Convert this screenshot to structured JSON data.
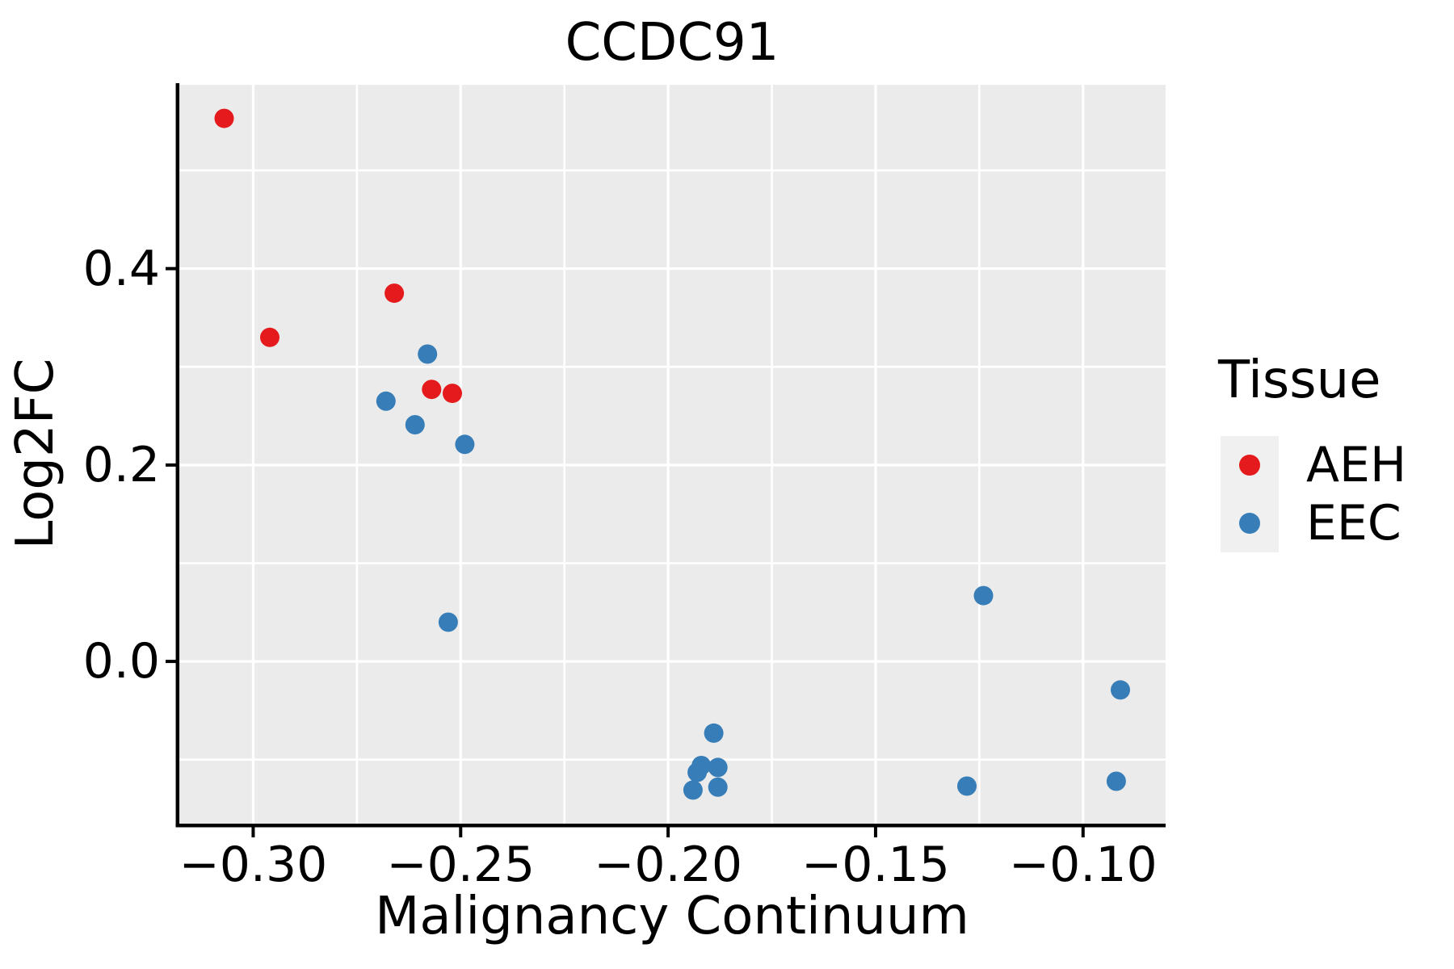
{
  "chart_data": {
    "type": "scatter",
    "title": "CCDC91",
    "xlabel": "Malignancy Continuum",
    "ylabel": "Log2FC",
    "xlim": [
      -0.3178,
      -0.0801
    ],
    "ylim": [
      -0.1652,
      0.5872
    ],
    "grid": true,
    "legend_position": "right",
    "x_ticks": [
      {
        "value": -0.3,
        "label": "−0.30"
      },
      {
        "value": -0.25,
        "label": "−0.25"
      },
      {
        "value": -0.2,
        "label": "−0.20"
      },
      {
        "value": -0.15,
        "label": "−0.15"
      },
      {
        "value": -0.1,
        "label": "−0.10"
      }
    ],
    "y_ticks": [
      {
        "value": 0.0,
        "label": "0.0"
      },
      {
        "value": 0.2,
        "label": "0.2"
      },
      {
        "value": 0.4,
        "label": "0.4"
      }
    ],
    "x_minor_gridlines": [
      -0.275,
      -0.225,
      -0.175,
      -0.125
    ],
    "y_minor_gridlines": [
      0.5,
      0.3,
      0.1,
      -0.1
    ],
    "series": [
      {
        "name": "AEH",
        "color": "#E41A1C",
        "points": [
          [
            -0.307,
            0.553
          ],
          [
            -0.296,
            0.33
          ],
          [
            -0.266,
            0.375
          ],
          [
            -0.257,
            0.277
          ],
          [
            -0.252,
            0.273
          ]
        ]
      },
      {
        "name": "EEC",
        "color": "#377EB8",
        "points": [
          [
            -0.258,
            0.313
          ],
          [
            -0.268,
            0.265
          ],
          [
            -0.261,
            0.241
          ],
          [
            -0.249,
            0.221
          ],
          [
            -0.253,
            0.04
          ],
          [
            -0.189,
            -0.073
          ],
          [
            -0.192,
            -0.106
          ],
          [
            -0.193,
            -0.113
          ],
          [
            -0.188,
            -0.108
          ],
          [
            -0.194,
            -0.131
          ],
          [
            -0.188,
            -0.128
          ],
          [
            -0.124,
            0.067
          ],
          [
            -0.128,
            -0.127
          ],
          [
            -0.091,
            -0.029
          ],
          [
            -0.092,
            -0.122
          ]
        ]
      }
    ],
    "legend": {
      "title": "Tissue",
      "entries": [
        {
          "label": "AEH",
          "color": "#E41A1C"
        },
        {
          "label": "EEC",
          "color": "#377EB8"
        }
      ]
    },
    "style": {
      "panel_bg": "#EBEBEB",
      "grid_color": "#FFFFFF",
      "spine_color": "#000000",
      "text_color": "#000000",
      "legend_key_bg": "#F0F0F0",
      "marker_radius": 12,
      "legend_marker_radius": 13
    }
  }
}
